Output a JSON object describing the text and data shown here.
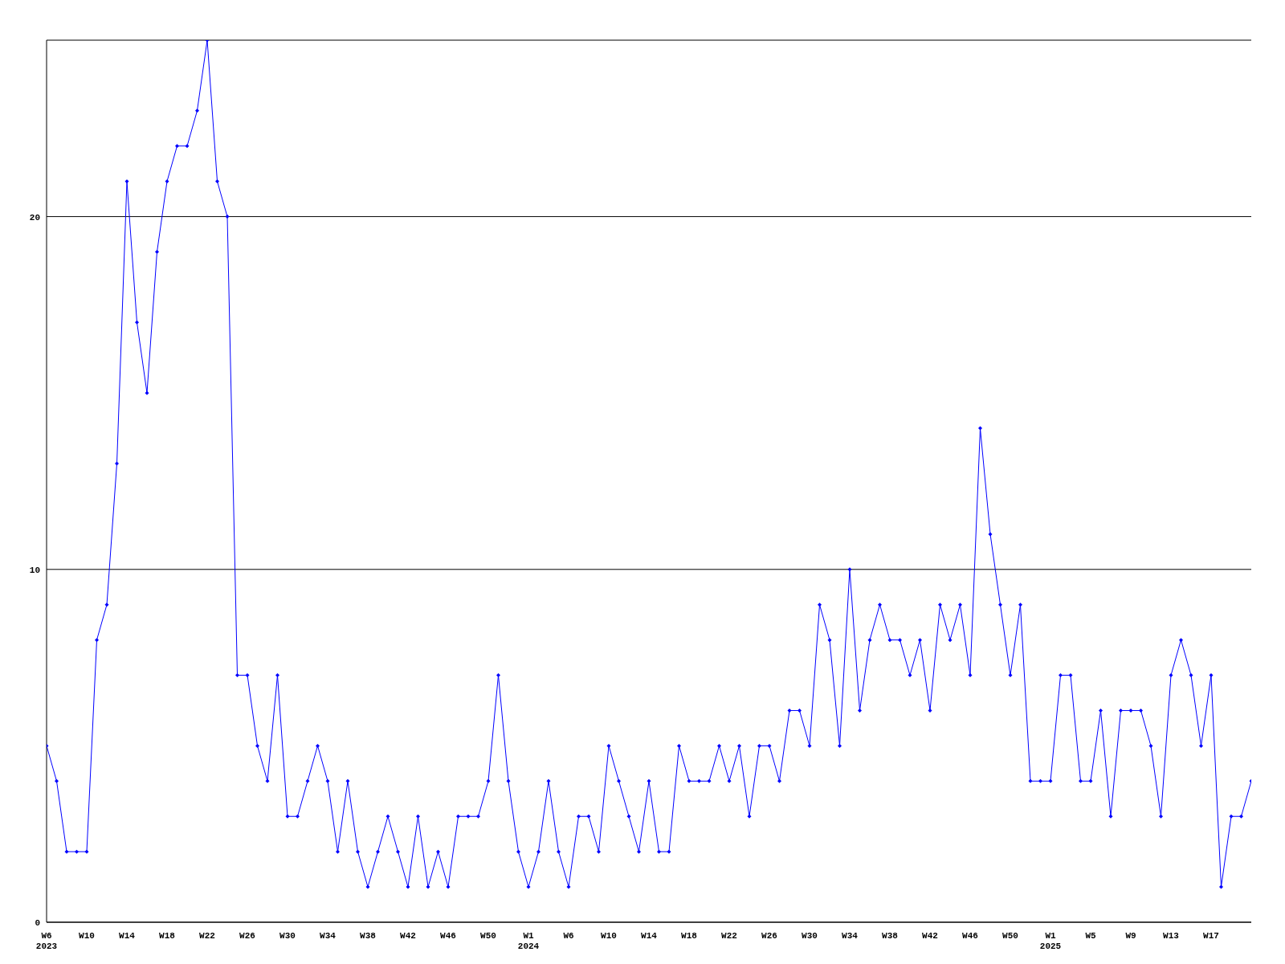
{
  "chart_data": {
    "type": "line",
    "categories": [
      "W6\n2023",
      null,
      null,
      null,
      "W10",
      null,
      null,
      null,
      "W14",
      null,
      null,
      null,
      "W18",
      null,
      null,
      null,
      "W22",
      null,
      null,
      null,
      "W26",
      null,
      null,
      null,
      "W30",
      null,
      null,
      null,
      "W34",
      null,
      null,
      null,
      "W38",
      null,
      null,
      null,
      "W42",
      null,
      null,
      null,
      "W46",
      null,
      null,
      null,
      "W50",
      null,
      null,
      null,
      "W1\n2024",
      null,
      null,
      null,
      "W6",
      null,
      null,
      null,
      "W10",
      null,
      null,
      null,
      "W14",
      null,
      null,
      null,
      "W18",
      null,
      null,
      null,
      "W22",
      null,
      null,
      null,
      "W26",
      null,
      null,
      null,
      "W30",
      null,
      null,
      null,
      "W34",
      null,
      null,
      null,
      "W38",
      null,
      null,
      null,
      "W42",
      null,
      null,
      null,
      "W46",
      null,
      null,
      null,
      "W50",
      null,
      null,
      null,
      "W1\n2025",
      null,
      null,
      null,
      "W5",
      null,
      null,
      null,
      "W9",
      null,
      null,
      null,
      "W13",
      null,
      null,
      null,
      "W17",
      null,
      null,
      null,
      null
    ],
    "series": [
      {
        "color": "#0000ff",
        "values": [
          5,
          4,
          2,
          2,
          2,
          8,
          9,
          13,
          21,
          17,
          15,
          19,
          21,
          22,
          22,
          23,
          25,
          21,
          20,
          7,
          7,
          5,
          4,
          7,
          3,
          3,
          4,
          5,
          4,
          2,
          4,
          2,
          1,
          2,
          3,
          2,
          1,
          3,
          1,
          2,
          1,
          3,
          3,
          3,
          4,
          7,
          4,
          2,
          1,
          2,
          4,
          2,
          1,
          3,
          3,
          2,
          5,
          4,
          3,
          2,
          4,
          2,
          2,
          5,
          4,
          4,
          4,
          5,
          4,
          5,
          3,
          5,
          5,
          4,
          6,
          6,
          5,
          9,
          8,
          5,
          10,
          6,
          8,
          9,
          8,
          8,
          7,
          8,
          6,
          9,
          8,
          9,
          7,
          14,
          11,
          9,
          7,
          9,
          4,
          4,
          4,
          7,
          7,
          4,
          4,
          6,
          3,
          6,
          6,
          6,
          5,
          3,
          7,
          8,
          7,
          5,
          7,
          1,
          3,
          3,
          4
        ]
      }
    ],
    "ylim": [
      0,
      25
    ],
    "yticks": [
      0,
      10,
      20
    ],
    "grid": "y",
    "marker": "diamond",
    "line_style": "solid"
  }
}
